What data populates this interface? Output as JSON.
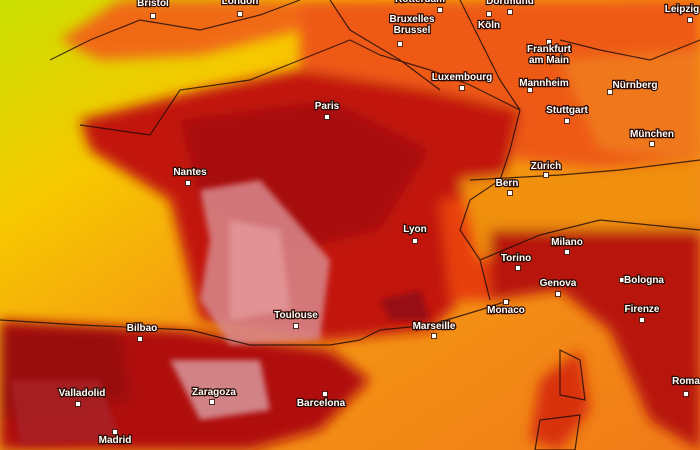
{
  "cities": [
    {
      "lines": [
        "Bristol"
      ]
    },
    {
      "lines": [
        "London"
      ]
    },
    {
      "lines": [
        "Rotterdam"
      ]
    },
    {
      "lines": [
        "Dortmund"
      ]
    },
    {
      "lines": [
        "Leipzig"
      ]
    },
    {
      "lines": [
        "Bruxelles",
        "Brussel"
      ]
    },
    {
      "lines": [
        "Köln"
      ]
    },
    {
      "lines": [
        "Frankfurt",
        "am Main"
      ]
    },
    {
      "lines": [
        "Luxembourg"
      ]
    },
    {
      "lines": [
        "Mannheim"
      ]
    },
    {
      "lines": [
        "Nürnberg"
      ]
    },
    {
      "lines": [
        "Paris"
      ]
    },
    {
      "lines": [
        "Stuttgart"
      ]
    },
    {
      "lines": [
        "München"
      ]
    },
    {
      "lines": [
        "Nantes"
      ]
    },
    {
      "lines": [
        "Zürich"
      ]
    },
    {
      "lines": [
        "Bern"
      ]
    },
    {
      "lines": [
        "Lyon"
      ]
    },
    {
      "lines": [
        "Milano"
      ]
    },
    {
      "lines": [
        "Torino"
      ]
    },
    {
      "lines": [
        "Genova"
      ]
    },
    {
      "lines": [
        "Bologna"
      ]
    },
    {
      "lines": [
        "Bilbao"
      ]
    },
    {
      "lines": [
        "Toulouse"
      ]
    },
    {
      "lines": [
        "Monaco"
      ]
    },
    {
      "lines": [
        "Marseille"
      ]
    },
    {
      "lines": [
        "Firenze"
      ]
    },
    {
      "lines": [
        "Valladolid"
      ]
    },
    {
      "lines": [
        "Zaragoza"
      ]
    },
    {
      "lines": [
        "Barcelona"
      ]
    },
    {
      "lines": [
        "Roma"
      ]
    },
    {
      "lines": [
        "Madrid"
      ]
    }
  ]
}
